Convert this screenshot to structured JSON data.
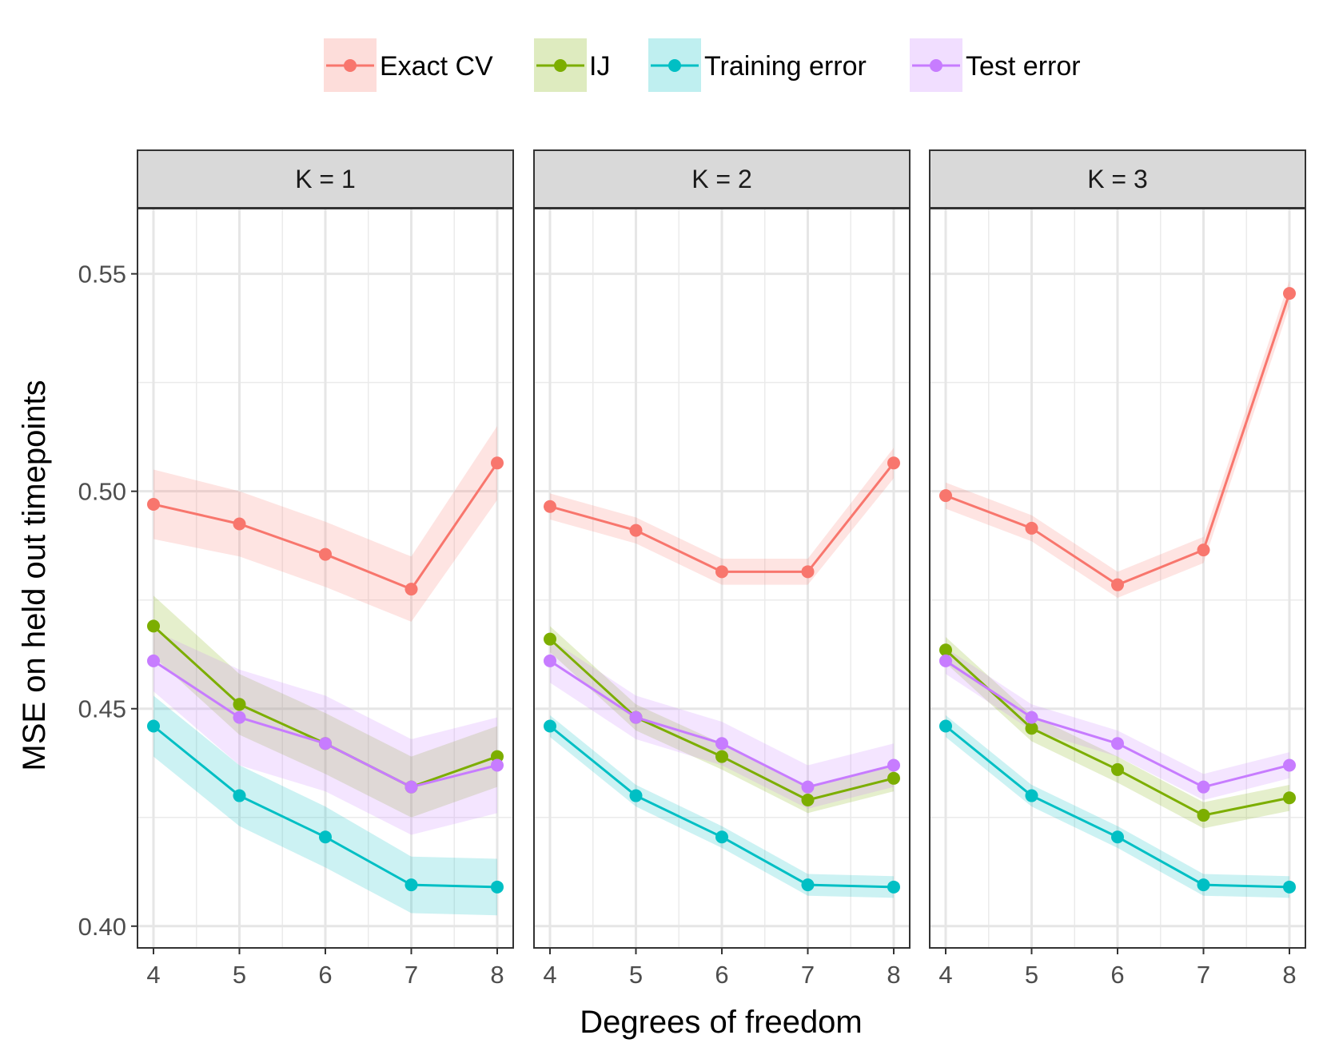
{
  "chart_data": {
    "type": "line",
    "title": "",
    "xlabel": "Degrees of freedom",
    "ylabel": "MSE on held out timepoints",
    "x": [
      4,
      5,
      6,
      7,
      8
    ],
    "xticks": [
      "4",
      "5",
      "6",
      "7",
      "8"
    ],
    "ylim": [
      0.395,
      0.565
    ],
    "yticks": [
      "0.40",
      "0.45",
      "0.50",
      "0.55"
    ],
    "ytick_values": [
      0.4,
      0.45,
      0.5,
      0.55
    ],
    "grid": true,
    "legend_position": "top",
    "legend": [
      {
        "name": "Exact CV",
        "color": "#f8766d"
      },
      {
        "name": "IJ",
        "color": "#7cae00"
      },
      {
        "name": "Training error",
        "color": "#00bfc4"
      },
      {
        "name": "Test error",
        "color": "#c77cff"
      }
    ],
    "panels": [
      {
        "label": "K = 1",
        "series": [
          {
            "name": "Exact CV",
            "values": [
              0.497,
              0.4925,
              0.4855,
              0.4775,
              0.5065
            ],
            "lower": [
              0.489,
              0.485,
              0.478,
              0.47,
              0.498
            ],
            "upper": [
              0.505,
              0.5,
              0.493,
              0.485,
              0.515
            ]
          },
          {
            "name": "IJ",
            "values": [
              0.469,
              0.451,
              0.442,
              0.432,
              0.439
            ],
            "lower": [
              0.462,
              0.444,
              0.435,
              0.425,
              0.432
            ],
            "upper": [
              0.476,
              0.458,
              0.449,
              0.439,
              0.446
            ]
          },
          {
            "name": "Training error",
            "values": [
              0.446,
              0.43,
              0.4205,
              0.4095,
              0.409
            ],
            "lower": [
              0.439,
              0.423,
              0.4135,
              0.403,
              0.4025
            ],
            "upper": [
              0.453,
              0.437,
              0.4275,
              0.416,
              0.4155
            ]
          },
          {
            "name": "Test error",
            "values": [
              0.461,
              0.448,
              0.442,
              0.432,
              0.437
            ],
            "lower": [
              0.454,
              0.437,
              0.431,
              0.421,
              0.426
            ],
            "upper": [
              0.468,
              0.459,
              0.453,
              0.443,
              0.448
            ]
          }
        ]
      },
      {
        "label": "K = 2",
        "series": [
          {
            "name": "Exact CV",
            "values": [
              0.4965,
              0.491,
              0.4815,
              0.4815,
              0.5065
            ],
            "lower": [
              0.4935,
              0.488,
              0.4785,
              0.4785,
              0.503
            ],
            "upper": [
              0.4995,
              0.494,
              0.4845,
              0.4845,
              0.51
            ]
          },
          {
            "name": "IJ",
            "values": [
              0.466,
              0.448,
              0.439,
              0.429,
              0.434
            ],
            "lower": [
              0.463,
              0.445,
              0.436,
              0.426,
              0.431
            ],
            "upper": [
              0.469,
              0.451,
              0.442,
              0.432,
              0.437
            ]
          },
          {
            "name": "Training error",
            "values": [
              0.446,
              0.43,
              0.4205,
              0.4095,
              0.409
            ],
            "lower": [
              0.4435,
              0.4275,
              0.418,
              0.407,
              0.4065
            ],
            "upper": [
              0.4485,
              0.4325,
              0.423,
              0.412,
              0.4115
            ]
          },
          {
            "name": "Test error",
            "values": [
              0.461,
              0.448,
              0.442,
              0.432,
              0.437
            ],
            "lower": [
              0.456,
              0.443,
              0.437,
              0.427,
              0.432
            ],
            "upper": [
              0.466,
              0.453,
              0.447,
              0.437,
              0.442
            ]
          }
        ]
      },
      {
        "label": "K = 3",
        "series": [
          {
            "name": "Exact CV",
            "values": [
              0.499,
              0.4915,
              0.4785,
              0.4865,
              0.5455
            ],
            "lower": [
              0.496,
              0.4885,
              0.4755,
              0.4835,
              0.5425
            ],
            "upper": [
              0.502,
              0.4945,
              0.4815,
              0.4895,
              0.5485
            ]
          },
          {
            "name": "IJ",
            "values": [
              0.4635,
              0.4455,
              0.436,
              0.4255,
              0.4295
            ],
            "lower": [
              0.4605,
              0.4425,
              0.433,
              0.4225,
              0.4265
            ],
            "upper": [
              0.4665,
              0.4485,
              0.439,
              0.4285,
              0.4325
            ]
          },
          {
            "name": "Training error",
            "values": [
              0.446,
              0.43,
              0.4205,
              0.4095,
              0.409
            ],
            "lower": [
              0.4435,
              0.4275,
              0.418,
              0.407,
              0.4065
            ],
            "upper": [
              0.4485,
              0.4325,
              0.423,
              0.412,
              0.4115
            ]
          },
          {
            "name": "Test error",
            "values": [
              0.461,
              0.448,
              0.442,
              0.432,
              0.437
            ],
            "lower": [
              0.458,
              0.445,
              0.439,
              0.429,
              0.434
            ],
            "upper": [
              0.464,
              0.451,
              0.445,
              0.435,
              0.44
            ]
          }
        ]
      }
    ]
  }
}
